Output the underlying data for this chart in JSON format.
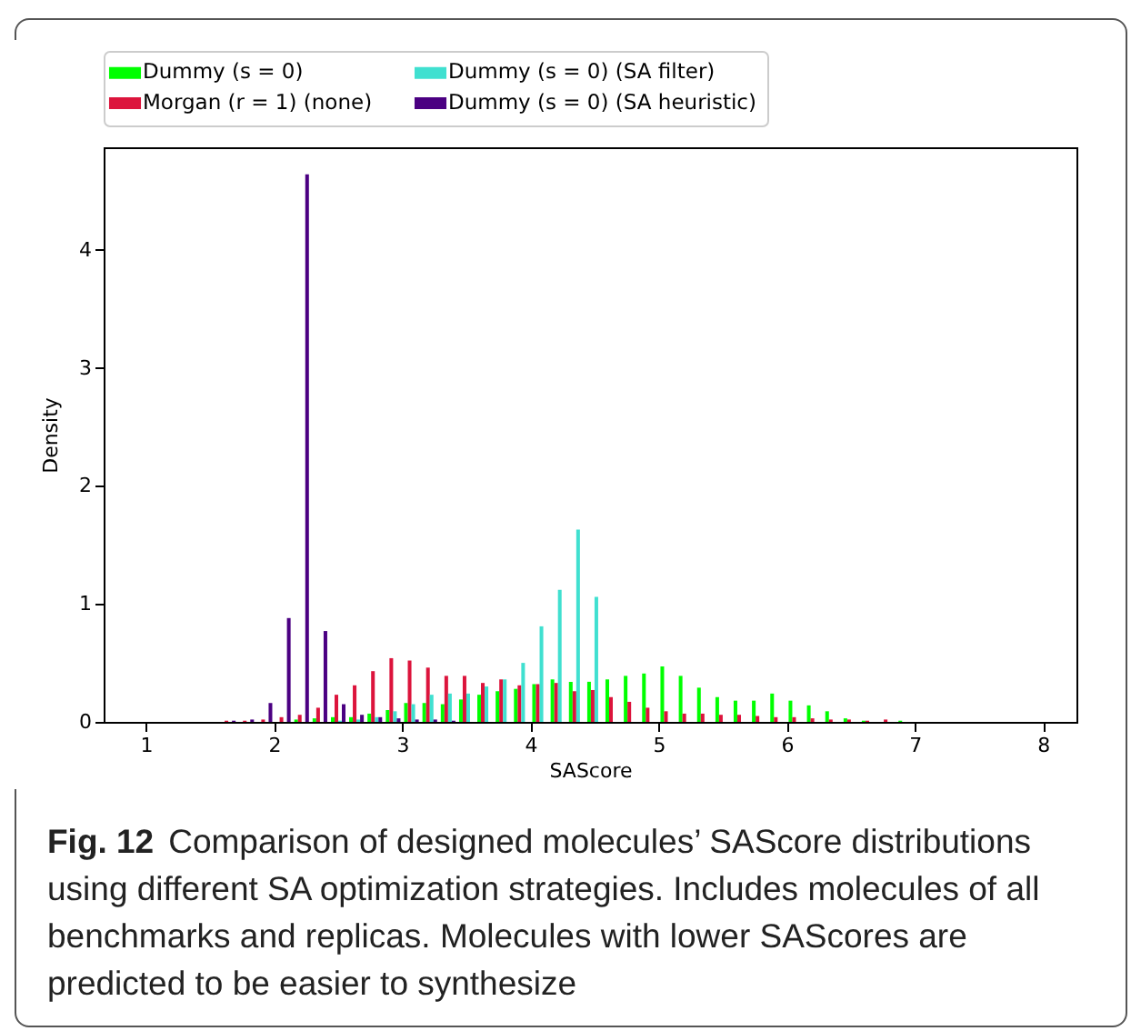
{
  "chart_data": {
    "type": "histogram",
    "xlabel": "SAScore",
    "ylabel": "Density",
    "bins": [
      1.571,
      1.714,
      1.857,
      2,
      2.143,
      2.286,
      2.429,
      2.571,
      2.714,
      2.857,
      3,
      3.143,
      3.286,
      3.429,
      3.571,
      3.714,
      3.857,
      4,
      4.143,
      4.286,
      4.429,
      4.571,
      4.714,
      4.857,
      5,
      5.143,
      5.286,
      5.429,
      5.571,
      5.714,
      5.857,
      6,
      6.143,
      6.286,
      6.429,
      6.571,
      6.714,
      6.857,
      7
    ],
    "series": [
      {
        "name": "Dummy (s = 0)",
        "color": "#00ff00",
        "values": [
          0,
          0,
          0,
          0,
          0.02,
          0.03,
          0.04,
          0.04,
          0.07,
          0.1,
          0.16,
          0.16,
          0.15,
          0.19,
          0.23,
          0.26,
          0.28,
          0.32,
          0.36,
          0.34,
          0.34,
          0.36,
          0.39,
          0.41,
          0.47,
          0.39,
          0.29,
          0.21,
          0.18,
          0.18,
          0.24,
          0.18,
          0.14,
          0.09,
          0.03,
          0.01,
          0,
          0.01
        ]
      },
      {
        "name": "Morgan (r = 1) (none)",
        "color": "#dc143c",
        "values": [
          0.01,
          0.01,
          0.02,
          0.04,
          0.06,
          0.12,
          0.23,
          0.31,
          0.43,
          0.54,
          0.52,
          0.46,
          0.39,
          0.39,
          0.33,
          0.36,
          0.31,
          0.32,
          0.33,
          0.26,
          0.27,
          0.21,
          0.17,
          0.12,
          0.09,
          0.07,
          0.07,
          0.06,
          0.06,
          0.05,
          0.04,
          0.04,
          0.03,
          0.02,
          0.02,
          0.01,
          0.02,
          0
        ]
      },
      {
        "name": "Dummy (s = 0) (SA filter)",
        "color": "#40e0d0",
        "values": [
          0,
          0,
          0,
          0,
          0,
          0,
          0.01,
          0.02,
          0.04,
          0.09,
          0.15,
          0.23,
          0.24,
          0.24,
          0.3,
          0.36,
          0.5,
          0.81,
          1.12,
          1.63,
          1.06,
          0,
          0,
          0,
          0,
          0,
          0,
          0,
          0,
          0,
          0,
          0,
          0,
          0,
          0,
          0,
          0,
          0
        ]
      },
      {
        "name": "Dummy (s = 0) (SA heuristic)",
        "color": "#4b0082",
        "values": [
          0.01,
          0.02,
          0.16,
          0.88,
          4.64,
          0.77,
          0.15,
          0.06,
          0.04,
          0.03,
          0.02,
          0.02,
          0.01,
          0,
          0,
          0,
          0,
          0,
          0,
          0,
          0,
          0,
          0,
          0,
          0,
          0,
          0,
          0,
          0,
          0,
          0,
          0,
          0,
          0,
          0,
          0,
          0,
          0
        ]
      }
    ],
    "xlim": [
      0.67,
      8.26
    ],
    "ylim": [
      0,
      4.87
    ],
    "xticks": [
      1,
      2,
      3,
      4,
      5,
      6,
      7,
      8
    ],
    "yticks": [
      0,
      1,
      2,
      3,
      4
    ],
    "grid": false,
    "legend": "top",
    "annotations": [
      "Fig. 12",
      "Comparison of designed molecules’ SAScore distributions using different SA optimization strategies. Includes molecules of all benchmarks and replicas. Molecules with lower SAScores are predicted to be easier to synthesize"
    ]
  }
}
